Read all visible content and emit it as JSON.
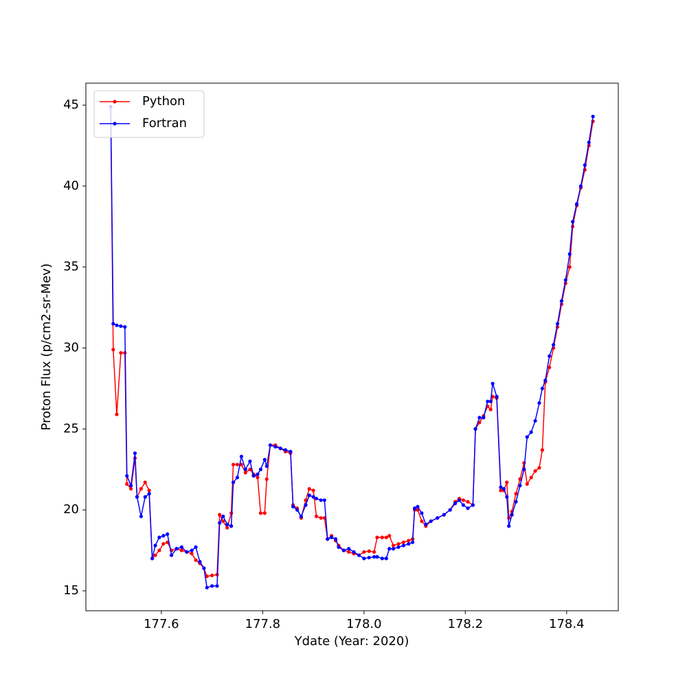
{
  "chart_data": {
    "type": "line",
    "xlabel": "Ydate (Year: 2020)",
    "ylabel": "Proton Flux (p/cm2-sr-Mev)",
    "x": [
      177.5,
      177.505,
      177.512,
      177.52,
      177.528,
      177.532,
      177.54,
      177.548,
      177.552,
      177.56,
      177.568,
      177.576,
      177.582,
      177.588,
      177.596,
      177.604,
      177.612,
      177.62,
      177.63,
      177.64,
      177.65,
      177.66,
      177.668,
      177.676,
      177.684,
      177.69,
      177.7,
      177.71,
      177.715,
      177.722,
      177.73,
      177.738,
      177.742,
      177.75,
      177.758,
      177.766,
      177.775,
      177.782,
      177.79,
      177.796,
      177.804,
      177.808,
      177.815,
      177.825,
      177.835,
      177.845,
      177.855,
      177.86,
      177.868,
      177.876,
      177.885,
      177.892,
      177.9,
      177.906,
      177.915,
      177.922,
      177.928,
      177.936,
      177.944,
      177.95,
      177.96,
      177.97,
      177.98,
      177.99,
      178.0,
      178.01,
      178.02,
      178.026,
      178.036,
      178.044,
      178.05,
      178.058,
      178.068,
      178.078,
      178.088,
      178.096,
      178.1,
      178.106,
      178.114,
      178.122,
      178.132,
      178.145,
      178.158,
      178.17,
      178.18,
      178.188,
      178.196,
      178.205,
      178.215,
      178.22,
      178.228,
      178.236,
      178.244,
      178.25,
      178.254,
      178.262,
      178.27,
      178.276,
      178.282,
      178.286,
      178.292,
      178.3,
      178.308,
      178.316,
      178.322,
      178.33,
      178.338,
      178.346,
      178.352,
      178.358,
      178.366,
      178.374,
      178.382,
      178.39,
      178.398,
      178.406,
      178.412,
      178.42,
      178.428,
      178.436,
      178.444,
      178.452
    ],
    "series": [
      {
        "name": "Python",
        "color": "#ff0000",
        "values": [
          44.9,
          29.9,
          25.9,
          29.7,
          29.7,
          21.6,
          21.3,
          23.2,
          20.8,
          21.3,
          21.7,
          21.2,
          17.0,
          17.2,
          17.5,
          17.9,
          18.0,
          17.5,
          17.6,
          17.5,
          17.4,
          17.3,
          16.9,
          16.7,
          16.4,
          15.9,
          15.95,
          16.0,
          19.7,
          19.3,
          18.9,
          19.8,
          22.8,
          22.8,
          22.8,
          22.3,
          22.5,
          22.2,
          22.0,
          19.8,
          19.8,
          21.9,
          24.0,
          24.0,
          23.8,
          23.6,
          23.5,
          20.3,
          20.1,
          19.5,
          20.6,
          21.3,
          21.2,
          19.6,
          19.5,
          19.5,
          18.2,
          18.4,
          18.1,
          17.8,
          17.5,
          17.4,
          17.3,
          17.2,
          17.4,
          17.45,
          17.4,
          18.3,
          18.3,
          18.3,
          18.4,
          17.8,
          17.9,
          18.0,
          18.1,
          18.2,
          20.0,
          20.0,
          19.3,
          19.0,
          19.3,
          19.5,
          19.7,
          20.0,
          20.5,
          20.7,
          20.6,
          20.5,
          20.3,
          25.0,
          25.4,
          25.8,
          26.4,
          26.2,
          27.0,
          26.9,
          21.2,
          21.2,
          21.7,
          19.5,
          19.9,
          21.0,
          21.9,
          22.9,
          21.6,
          22.0,
          22.4,
          22.6,
          23.7,
          27.9,
          28.8,
          30.0,
          31.3,
          32.7,
          34.0,
          35.0,
          37.5,
          38.8,
          39.9,
          41.0,
          42.5,
          44.0
        ]
      },
      {
        "name": "Fortran",
        "color": "#0000ff",
        "values": [
          44.9,
          31.5,
          31.4,
          31.35,
          31.3,
          22.1,
          21.5,
          23.5,
          20.8,
          19.6,
          20.8,
          21.0,
          17.0,
          17.8,
          18.3,
          18.4,
          18.5,
          17.2,
          17.6,
          17.7,
          17.4,
          17.5,
          17.7,
          16.8,
          16.4,
          15.2,
          15.3,
          15.3,
          19.2,
          19.6,
          19.1,
          19.0,
          21.7,
          22.0,
          23.3,
          22.5,
          23.0,
          22.1,
          22.2,
          22.5,
          23.1,
          22.7,
          24.0,
          23.9,
          23.8,
          23.7,
          23.6,
          20.2,
          20.0,
          19.6,
          20.3,
          20.9,
          20.8,
          20.7,
          20.6,
          20.6,
          18.2,
          18.3,
          18.2,
          17.7,
          17.5,
          17.6,
          17.4,
          17.2,
          17.0,
          17.05,
          17.1,
          17.1,
          17.0,
          17.0,
          17.6,
          17.6,
          17.7,
          17.8,
          17.9,
          18.0,
          20.1,
          20.2,
          19.8,
          19.1,
          19.3,
          19.5,
          19.7,
          20.0,
          20.4,
          20.6,
          20.3,
          20.1,
          20.3,
          25.0,
          25.7,
          25.7,
          26.7,
          26.7,
          27.8,
          27.0,
          21.4,
          21.3,
          20.8,
          19.0,
          19.7,
          20.5,
          21.5,
          22.5,
          24.5,
          24.8,
          25.5,
          26.6,
          27.5,
          28.0,
          29.5,
          30.2,
          31.5,
          32.9,
          34.2,
          35.8,
          37.8,
          38.9,
          40.0,
          41.3,
          42.7,
          44.3
        ]
      }
    ],
    "xlim": [
      177.451,
      178.502
    ],
    "ylim": [
      13.77,
      46.36
    ],
    "xticks": [
      177.6,
      177.8,
      {
        "value": 178,
        "label": "178.0"
      },
      178.2,
      178.4
    ],
    "yticks": [
      15,
      20,
      25,
      30,
      35,
      40,
      45
    ],
    "grid": false,
    "legend_loc": "upper left"
  }
}
